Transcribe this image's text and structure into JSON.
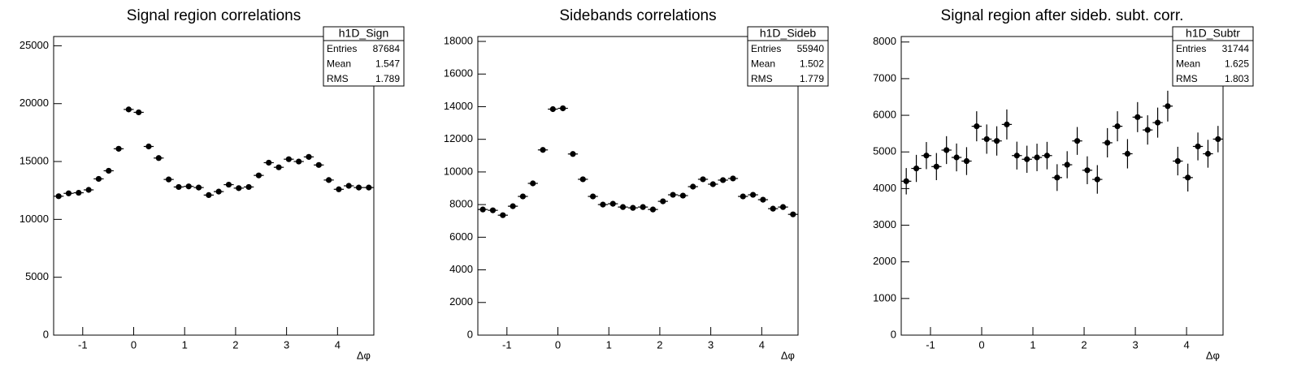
{
  "chart_data": [
    {
      "type": "histogram",
      "title": "Signal region correlations",
      "x_label": "Δφ",
      "color": "#000000",
      "bins": [
        -1.5708,
        -1.3744,
        -1.1781,
        -0.9817,
        -0.7854,
        -0.589,
        -0.3927,
        -0.1963,
        0,
        0.1963,
        0.3927,
        0.589,
        0.7854,
        0.9817,
        1.1781,
        1.3744,
        1.5708,
        1.7671,
        1.9635,
        2.1598,
        2.3562,
        2.5525,
        2.7489,
        2.9452,
        3.1416,
        3.3379,
        3.5343,
        3.7306,
        3.927,
        4.1233,
        4.3197,
        4.516,
        4.7124
      ],
      "values": [
        12000,
        12250,
        12300,
        12550,
        13500,
        14200,
        16100,
        19500,
        19250,
        16300,
        15300,
        13450,
        12800,
        12850,
        12750,
        12100,
        12400,
        13000,
        12700,
        12800,
        13800,
        14900,
        14500,
        15200,
        15000,
        15400,
        14700,
        13400,
        12600,
        12900,
        12750,
        12750
      ],
      "errors": [
        160,
        160,
        160,
        160,
        170,
        175,
        190,
        210,
        210,
        190,
        185,
        170,
        165,
        165,
        165,
        160,
        160,
        165,
        165,
        165,
        170,
        180,
        175,
        180,
        180,
        180,
        180,
        170,
        165,
        165,
        165,
        165
      ],
      "xlim": [
        -1.5708,
        4.7124
      ],
      "ylim": [
        0,
        25800
      ],
      "xticks": [
        -1,
        0,
        1,
        2,
        3,
        4
      ],
      "yticks": [
        0,
        5000,
        10000,
        15000,
        20000,
        25000
      ],
      "stats": {
        "name": "h1D_Sign",
        "rows": [
          {
            "label": "Entries",
            "value": 87684
          },
          {
            "label": "Mean",
            "value": 1.547
          },
          {
            "label": "RMS",
            "value": 1.789
          }
        ]
      }
    },
    {
      "type": "histogram",
      "title": "Sidebands correlations",
      "x_label": "Δφ",
      "color": "#000000",
      "bins": [
        -1.5708,
        -1.3744,
        -1.1781,
        -0.9817,
        -0.7854,
        -0.589,
        -0.3927,
        -0.1963,
        0,
        0.1963,
        0.3927,
        0.589,
        0.7854,
        0.9817,
        1.1781,
        1.3744,
        1.5708,
        1.7671,
        1.9635,
        2.1598,
        2.3562,
        2.5525,
        2.7489,
        2.9452,
        3.1416,
        3.3379,
        3.5343,
        3.7306,
        3.927,
        4.1233,
        4.3197,
        4.516,
        4.7124
      ],
      "values": [
        7700,
        7650,
        7350,
        7900,
        8500,
        9300,
        11350,
        13850,
        13900,
        11100,
        9550,
        8500,
        8000,
        8050,
        7850,
        7800,
        7850,
        7700,
        8200,
        8600,
        8550,
        9100,
        9550,
        9250,
        9500,
        9600,
        8500,
        8600,
        8300,
        7750,
        7850,
        7400
      ],
      "errors": [
        120,
        120,
        120,
        120,
        125,
        130,
        140,
        160,
        160,
        140,
        130,
        125,
        120,
        120,
        120,
        120,
        120,
        120,
        120,
        125,
        125,
        130,
        130,
        130,
        130,
        130,
        125,
        125,
        125,
        120,
        120,
        120
      ],
      "xlim": [
        -1.5708,
        4.7124
      ],
      "ylim": [
        0,
        18300
      ],
      "xticks": [
        -1,
        0,
        1,
        2,
        3,
        4
      ],
      "yticks": [
        0,
        2000,
        4000,
        6000,
        8000,
        10000,
        12000,
        14000,
        16000,
        18000
      ],
      "stats": {
        "name": "h1D_Sideb",
        "rows": [
          {
            "label": "Entries",
            "value": 55940
          },
          {
            "label": "Mean",
            "value": 1.502
          },
          {
            "label": "RMS",
            "value": 1.779
          }
        ]
      }
    },
    {
      "type": "histogram",
      "title": "Signal region after sideb. subt. corr.",
      "x_label": "Δφ",
      "color": "#000000",
      "bins": [
        -1.5708,
        -1.3744,
        -1.1781,
        -0.9817,
        -0.7854,
        -0.589,
        -0.3927,
        -0.1963,
        0,
        0.1963,
        0.3927,
        0.589,
        0.7854,
        0.9817,
        1.1781,
        1.3744,
        1.5708,
        1.7671,
        1.9635,
        2.1598,
        2.3562,
        2.5525,
        2.7489,
        2.9452,
        3.1416,
        3.3379,
        3.5343,
        3.7306,
        3.927,
        4.1233,
        4.3197,
        4.516,
        4.7124
      ],
      "values": [
        4200,
        4550,
        4900,
        4600,
        5050,
        4850,
        4750,
        5700,
        5350,
        5300,
        5750,
        4900,
        4800,
        4850,
        4900,
        4300,
        4650,
        5300,
        4500,
        4250,
        5250,
        5700,
        4950,
        5950,
        5600,
        5800,
        6250,
        4750,
        4300,
        5150,
        4950,
        5350
      ],
      "errors": [
        360,
        370,
        370,
        370,
        380,
        380,
        380,
        410,
        400,
        400,
        410,
        380,
        370,
        375,
        375,
        365,
        370,
        380,
        380,
        390,
        400,
        410,
        400,
        410,
        400,
        410,
        420,
        390,
        380,
        380,
        380,
        360
      ],
      "xlim": [
        -1.5708,
        4.7124
      ],
      "ylim": [
        0,
        8150
      ],
      "xticks": [
        -1,
        0,
        1,
        2,
        3,
        4
      ],
      "yticks": [
        0,
        1000,
        2000,
        3000,
        4000,
        5000,
        6000,
        7000,
        8000
      ],
      "stats": {
        "name": "h1D_Subtr",
        "rows": [
          {
            "label": "Entries",
            "value": 31744
          },
          {
            "label": "Mean",
            "value": 1.625
          },
          {
            "label": "RMS",
            "value": 1.803
          }
        ]
      }
    }
  ]
}
